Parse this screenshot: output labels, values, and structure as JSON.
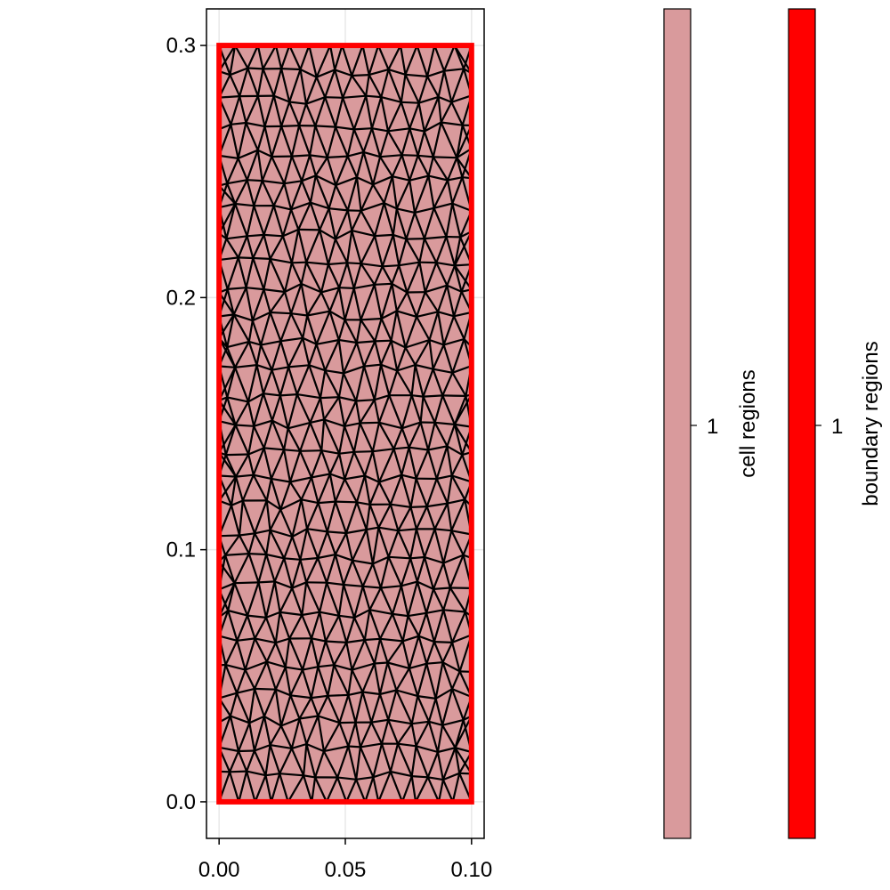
{
  "chart_data": {
    "type": "mesh",
    "x_ticks": [
      {
        "value": 0.0,
        "label": "0.00"
      },
      {
        "value": 0.05,
        "label": "0.05"
      },
      {
        "value": 0.1,
        "label": "0.10"
      }
    ],
    "y_ticks": [
      {
        "value": 0.0,
        "label": "0.0"
      },
      {
        "value": 0.1,
        "label": "0.1"
      },
      {
        "value": 0.2,
        "label": "0.2"
      },
      {
        "value": 0.3,
        "label": "0.3"
      }
    ],
    "xlim": [
      -0.005,
      0.105
    ],
    "ylim": [
      -0.0145,
      0.3145
    ],
    "domain": {
      "xmin": 0.0,
      "xmax": 0.1,
      "ymin": 0.0,
      "ymax": 0.3
    },
    "mesh_rows": 28,
    "mesh_cols": 14,
    "grid": true,
    "colors": {
      "cell_region": "#d99a9c",
      "boundary_region": "#ff0000",
      "mesh_edges": "#000000",
      "grid": "#e8e8e8"
    },
    "colorbars": [
      {
        "label": "cell regions",
        "tick": "1",
        "color": "#d99a9c"
      },
      {
        "label": "boundary regions",
        "tick": "1",
        "color": "#ff0000"
      }
    ]
  }
}
